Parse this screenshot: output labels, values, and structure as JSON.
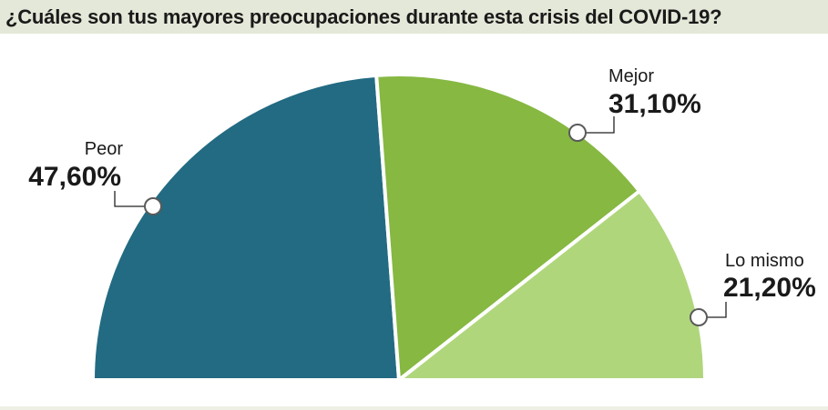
{
  "title": "¿Cuáles son tus mayores preocupaciones durante esta crisis del COVID-19?",
  "chart_data": {
    "type": "pie",
    "subtype": "half-donut",
    "title": "¿Cuáles son tus mayores preocupaciones durante esta crisis del COVID-19?",
    "slices": [
      {
        "label": "Peor",
        "value": 47.6,
        "value_label": "47,60%",
        "color": "#226b82"
      },
      {
        "label": "Mejor",
        "value": 31.1,
        "value_label": "31,10%",
        "color": "#86b842"
      },
      {
        "label": "Lo mismo",
        "value": 21.2,
        "value_label": "21,20%",
        "color": "#b0d67c"
      }
    ]
  }
}
